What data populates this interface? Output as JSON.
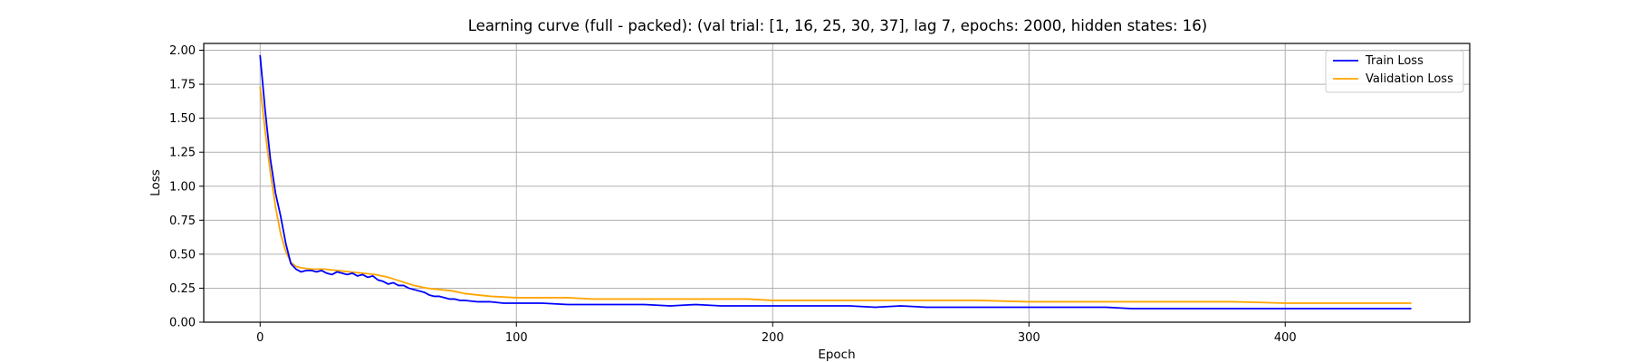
{
  "chart_data": {
    "type": "line",
    "title": "Learning curve (full - packed): (val trial: [1, 16, 25, 30, 37], lag 7, epochs: 2000, hidden states: 16)",
    "xlabel": "Epoch",
    "ylabel": "Loss",
    "xlim": [
      -22,
      472
    ],
    "ylim": [
      0,
      2.05
    ],
    "xticks": [
      0,
      100,
      200,
      300,
      400
    ],
    "yticks": [
      0.0,
      0.25,
      0.5,
      0.75,
      1.0,
      1.25,
      1.5,
      1.75,
      2.0
    ],
    "xtick_labels": [
      "0",
      "100",
      "200",
      "300",
      "400"
    ],
    "ytick_labels": [
      "0.00",
      "0.25",
      "0.50",
      "0.75",
      "1.00",
      "1.25",
      "1.50",
      "1.75",
      "2.00"
    ],
    "grid": true,
    "legend_position": "top-right",
    "series": [
      {
        "name": "Train Loss",
        "color": "#0000ff",
        "x": [
          0,
          2,
          4,
          6,
          8,
          10,
          12,
          14,
          16,
          18,
          20,
          22,
          24,
          26,
          28,
          30,
          32,
          34,
          36,
          38,
          40,
          42,
          44,
          46,
          48,
          50,
          52,
          54,
          56,
          58,
          60,
          62,
          64,
          66,
          68,
          70,
          72,
          74,
          76,
          78,
          80,
          85,
          90,
          95,
          100,
          110,
          120,
          130,
          140,
          150,
          160,
          170,
          180,
          190,
          200,
          210,
          220,
          230,
          240,
          250,
          260,
          270,
          280,
          290,
          300,
          310,
          320,
          330,
          340,
          350,
          360,
          370,
          380,
          390,
          400,
          410,
          420,
          430,
          440,
          449
        ],
        "values": [
          1.96,
          1.55,
          1.2,
          0.95,
          0.78,
          0.58,
          0.43,
          0.39,
          0.37,
          0.38,
          0.38,
          0.37,
          0.38,
          0.36,
          0.35,
          0.37,
          0.36,
          0.35,
          0.36,
          0.34,
          0.35,
          0.33,
          0.34,
          0.31,
          0.3,
          0.28,
          0.29,
          0.27,
          0.27,
          0.25,
          0.24,
          0.23,
          0.22,
          0.2,
          0.19,
          0.19,
          0.18,
          0.17,
          0.17,
          0.16,
          0.16,
          0.15,
          0.15,
          0.14,
          0.14,
          0.14,
          0.13,
          0.13,
          0.13,
          0.13,
          0.12,
          0.13,
          0.12,
          0.12,
          0.12,
          0.12,
          0.12,
          0.12,
          0.11,
          0.12,
          0.11,
          0.11,
          0.11,
          0.11,
          0.11,
          0.11,
          0.11,
          0.11,
          0.1,
          0.1,
          0.1,
          0.1,
          0.1,
          0.1,
          0.1,
          0.1,
          0.1,
          0.1,
          0.1,
          0.1
        ]
      },
      {
        "name": "Validation Loss",
        "color": "#ffa500",
        "x": [
          0,
          2,
          4,
          6,
          8,
          10,
          12,
          14,
          16,
          20,
          25,
          30,
          35,
          40,
          45,
          50,
          55,
          60,
          65,
          70,
          75,
          80,
          90,
          100,
          110,
          120,
          130,
          140,
          150,
          160,
          170,
          180,
          190,
          200,
          220,
          240,
          260,
          280,
          300,
          320,
          340,
          360,
          380,
          400,
          420,
          440,
          449
        ],
        "values": [
          1.73,
          1.4,
          1.1,
          0.85,
          0.65,
          0.52,
          0.44,
          0.41,
          0.4,
          0.39,
          0.39,
          0.38,
          0.37,
          0.36,
          0.35,
          0.33,
          0.3,
          0.27,
          0.25,
          0.24,
          0.23,
          0.21,
          0.19,
          0.18,
          0.18,
          0.18,
          0.17,
          0.17,
          0.17,
          0.17,
          0.17,
          0.17,
          0.17,
          0.16,
          0.16,
          0.16,
          0.16,
          0.16,
          0.15,
          0.15,
          0.15,
          0.15,
          0.15,
          0.14,
          0.14,
          0.14,
          0.14
        ]
      }
    ]
  }
}
